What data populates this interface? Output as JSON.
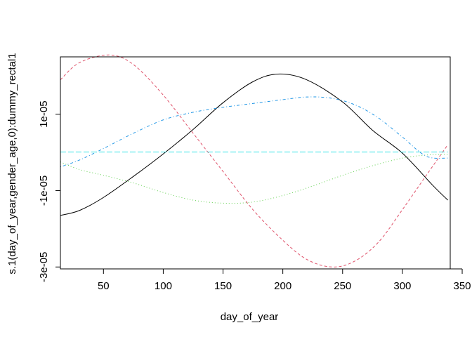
{
  "chart_data": {
    "type": "line",
    "title": "",
    "xlabel": "day_of_year",
    "ylabel": "s.1(day_of_year,gender_age,0):dummy_rectal1",
    "xlim": [
      14,
      340
    ],
    "ylim": [
      -3.05e-05,
      2.5e-05
    ],
    "xticks": [
      50,
      100,
      150,
      200,
      250,
      300,
      350
    ],
    "xtick_labels": [
      "50",
      "100",
      "150",
      "200",
      "250",
      "300",
      "350"
    ],
    "yticks": [
      -3e-05,
      -1e-05,
      1e-05
    ],
    "ytick_labels": [
      "-3e-05",
      "-1e-05",
      "1e-05"
    ],
    "grid": false,
    "legend": "none",
    "series": [
      {
        "color": "#000000",
        "dash": "solid",
        "x": [
          14,
          30,
          50,
          75,
          100,
          125,
          150,
          175,
          196,
          220,
          250,
          275,
          300,
          325,
          338
        ],
        "y": [
          -1.65e-05,
          -1.52e-05,
          -1.18e-05,
          -6.3e-06,
          -4e-07,
          6e-06,
          1.3e-05,
          1.85e-05,
          2.05e-05,
          1.9e-05,
          1.32e-05,
          5.8e-06,
          -2e-07,
          -8.5e-06,
          -1.25e-05
        ]
      },
      {
        "color": "#DF536B",
        "dash": "dashed",
        "x": [
          14,
          30,
          55,
          75,
          100,
          125,
          150,
          175,
          200,
          220,
          241,
          260,
          280,
          300,
          320,
          338
        ],
        "y": [
          1.9e-05,
          2.35e-05,
          2.55e-05,
          2.3e-05,
          1.5e-05,
          5e-06,
          -5e-06,
          -1.5e-05,
          -2.3e-05,
          -2.8e-05,
          -3e-05,
          -2.85e-05,
          -2.35e-05,
          -1.5e-05,
          -6e-06,
          2e-06
        ]
      },
      {
        "color": "#61D04F",
        "dash": "dotted",
        "x": [
          14,
          30,
          50,
          75,
          100,
          125,
          150,
          175,
          200,
          225,
          250,
          275,
          300,
          320,
          338
        ],
        "y": [
          -2.5e-06,
          -4.5e-06,
          -6e-06,
          -8e-06,
          -1.05e-05,
          -1.25e-05,
          -1.33e-05,
          -1.3e-05,
          -1.13e-05,
          -8.8e-06,
          -6e-06,
          -3.5e-06,
          -1.5e-06,
          -7e-07,
          -5e-07
        ]
      },
      {
        "color": "#2297E6",
        "dash": "dotdash",
        "x": [
          14,
          30,
          50,
          75,
          100,
          125,
          150,
          175,
          200,
          220,
          240,
          260,
          280,
          300,
          320,
          338
        ],
        "y": [
          -3.8e-06,
          -2e-06,
          1e-06,
          5e-06,
          8.5e-06,
          1.05e-05,
          1.18e-05,
          1.28e-05,
          1.38e-05,
          1.45e-05,
          1.42e-05,
          1.25e-05,
          9e-06,
          4e-06,
          -1e-06,
          -1.5e-06
        ]
      },
      {
        "color": "#28E2E5",
        "dash": "longdash",
        "x": [
          14,
          100,
          200,
          300,
          338
        ],
        "y": [
          1e-07,
          1e-07,
          1e-07,
          1e-07,
          1e-07
        ]
      }
    ]
  }
}
